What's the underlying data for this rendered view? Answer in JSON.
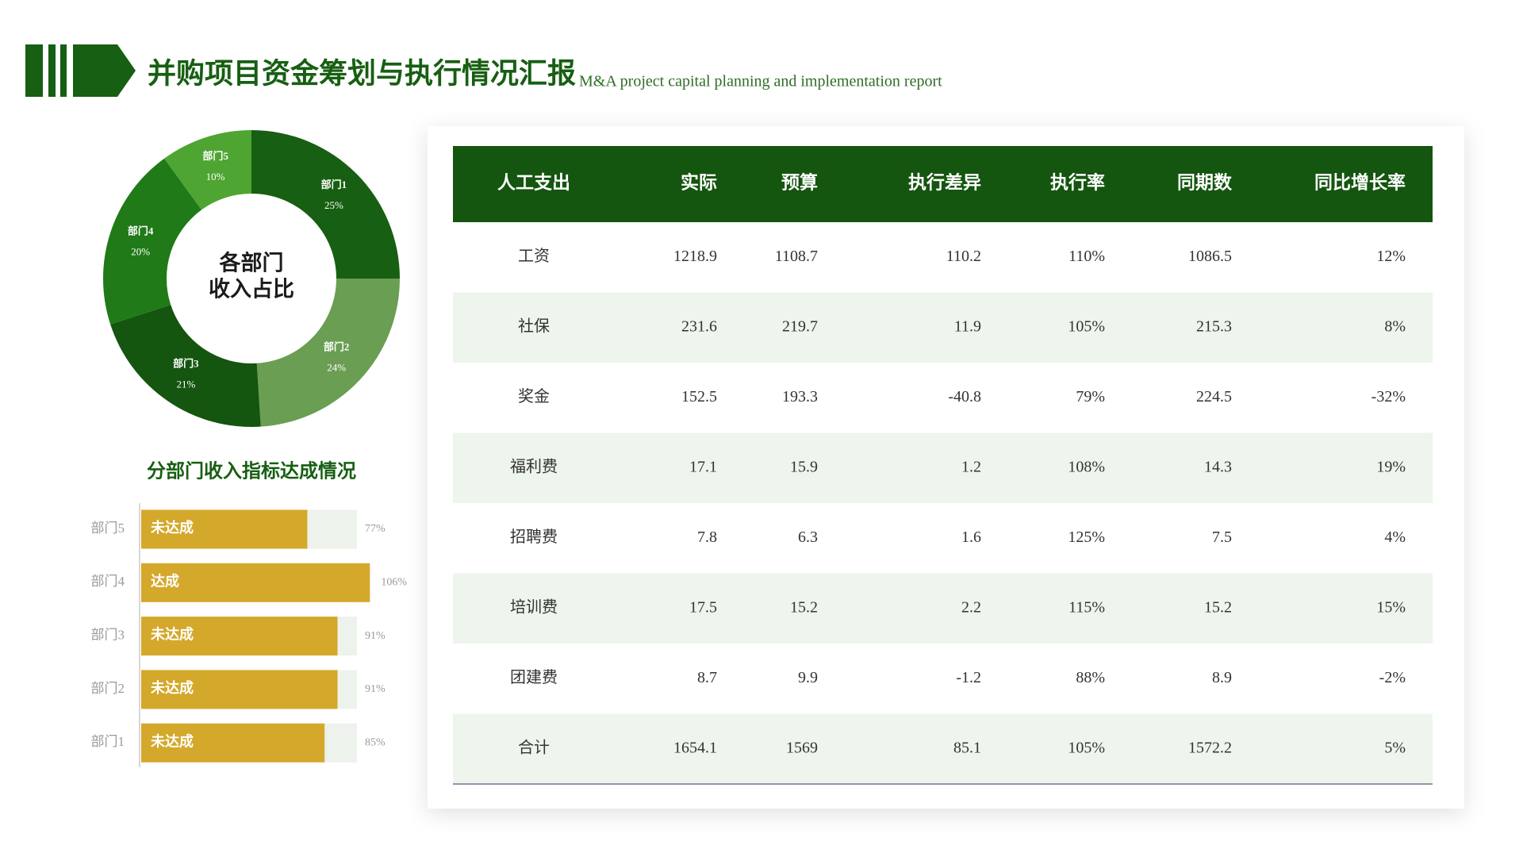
{
  "header": {
    "title": "并购项目资金筹划与执行情况汇报",
    "subtitle": "M&A project capital planning and implementation report"
  },
  "chart_data": [
    {
      "type": "pie",
      "title": "各部门\n收入占比",
      "categories": [
        "部门1",
        "部门2",
        "部门3",
        "部门4",
        "部门5"
      ],
      "values": [
        25,
        24,
        21,
        20,
        10
      ],
      "value_labels": [
        "25%",
        "24%",
        "21%",
        "20%",
        "10%"
      ],
      "colors": [
        "#175f12",
        "#6a9e52",
        "#14550f",
        "#1f7a17",
        "#4ea531"
      ]
    },
    {
      "type": "bar",
      "title": "分部门收入指标达成情况",
      "categories": [
        "部门5",
        "部门4",
        "部门3",
        "部门2",
        "部门1"
      ],
      "values": [
        77,
        106,
        91,
        91,
        85
      ],
      "value_labels": [
        "77%",
        "106%",
        "91%",
        "91%",
        "85%"
      ],
      "bar_labels": [
        "未达成",
        "达成",
        "未达成",
        "未达成",
        "未达成"
      ],
      "color": "#d4a82a",
      "xlim": [
        0,
        100
      ]
    }
  ],
  "table": {
    "header": [
      "人工支出",
      "实际",
      "预算",
      "执行差异",
      "执行率",
      "同期数",
      "同比增长率"
    ],
    "rows": [
      [
        "工资",
        "1218.9",
        "1108.7",
        "110.2",
        "110%",
        "1086.5",
        "12%"
      ],
      [
        "社保",
        "231.6",
        "219.7",
        "11.9",
        "105%",
        "215.3",
        "8%"
      ],
      [
        "奖金",
        "152.5",
        "193.3",
        "-40.8",
        "79%",
        "224.5",
        "-32%"
      ],
      [
        "福利费",
        "17.1",
        "15.9",
        "1.2",
        "108%",
        "14.3",
        "19%"
      ],
      [
        "招聘费",
        "7.8",
        "6.3",
        "1.6",
        "125%",
        "7.5",
        "4%"
      ],
      [
        "培训费",
        "17.5",
        "15.2",
        "2.2",
        "115%",
        "15.2",
        "15%"
      ],
      [
        "团建费",
        "8.7",
        "9.9",
        "-1.2",
        "88%",
        "8.9",
        "-2%"
      ],
      [
        "合计",
        "1654.1",
        "1569",
        "85.1",
        "105%",
        "1572.2",
        "5%"
      ]
    ]
  }
}
